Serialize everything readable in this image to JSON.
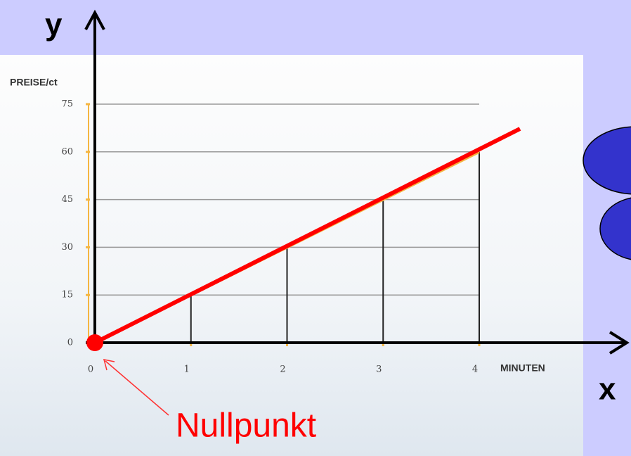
{
  "chart_data": {
    "type": "line",
    "x": [
      0,
      1,
      2,
      3,
      4
    ],
    "values": [
      0,
      15,
      30,
      45,
      60
    ],
    "color": "#f5b642",
    "xlabel": "MINUTEN",
    "ylabel": "PREISE/ct",
    "xlim": [
      0,
      4
    ],
    "xticks": [
      0,
      1,
      2,
      3,
      4
    ],
    "ylim": [
      0,
      75
    ],
    "yticks": [
      0,
      15,
      30,
      45,
      60,
      75
    ],
    "grid": true,
    "annotations": [
      "y",
      "x",
      "Nullpunkt"
    ]
  }
}
